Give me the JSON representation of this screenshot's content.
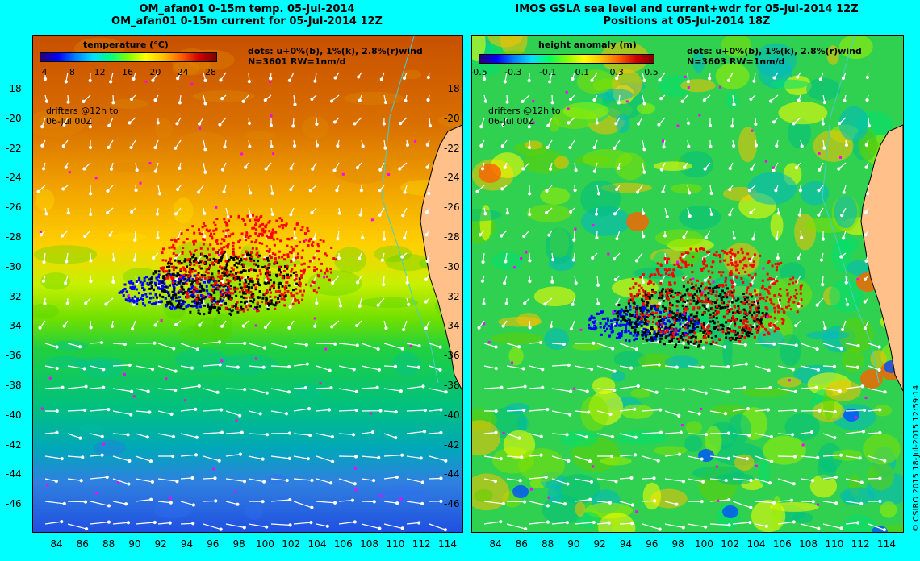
{
  "left_map": {
    "title_line1": "OM_afan01 0-15m temp. 05-Jul-2014",
    "title_line2": "OM_afan01 0-15m current for 05-Jul-2014 12Z",
    "colorbar_title": "temperature (°C)",
    "colorbar_ticks": [
      "4",
      "8",
      "12",
      "16",
      "20",
      "24",
      "28"
    ],
    "legend_line1": "dots: u+0%(b), 1%(k), 2.8%(r)wind",
    "legend_line2": "N=3601 RW=1nm/d",
    "drifters_line1": "drifters @12h to",
    "drifters_line2": "06-Jul 00Z"
  },
  "right_map": {
    "title_line1": "IMOS GSLA sea level and current+wdr for 05-Jul-2014 12Z",
    "title_line2": "Positions at 05-Jul-2014 18Z",
    "colorbar_title": "height anomaly (m)",
    "colorbar_ticks": [
      "-0.5",
      "-0.3",
      "-0.1",
      "0.1",
      "0.3",
      "0.5"
    ],
    "legend_line1": "dots: u+0%(b), 1%(k), 2.8%(r)wind",
    "legend_line2": "N=3603 RW=1nm/d",
    "drifters_line1": "drifters @12h to",
    "drifters_line2": "06-Jul 00Z"
  },
  "latitude_labels": [
    "-18",
    "-20",
    "-22",
    "-24",
    "-26",
    "-28",
    "-30",
    "-32",
    "-34",
    "-36",
    "-38",
    "-40",
    "-42",
    "-44",
    "-46"
  ],
  "longitude_labels": [
    "84",
    "86",
    "88",
    "90",
    "92",
    "94",
    "96",
    "98",
    "100",
    "102",
    "104",
    "106",
    "108",
    "110",
    "112",
    "114"
  ],
  "credit": "© CSIRO 2015   18-Jul-2015 12:59:14",
  "colors": {
    "background": "#00ffff",
    "land": "#ffc08a",
    "coastline": "#40d0d0",
    "drifter_blue": "#0000ff",
    "drifter_black": "#000000",
    "drifter_red": "#ff0000",
    "particle_magenta": "#ff00ff",
    "current_arrows": "#ffffff"
  }
}
